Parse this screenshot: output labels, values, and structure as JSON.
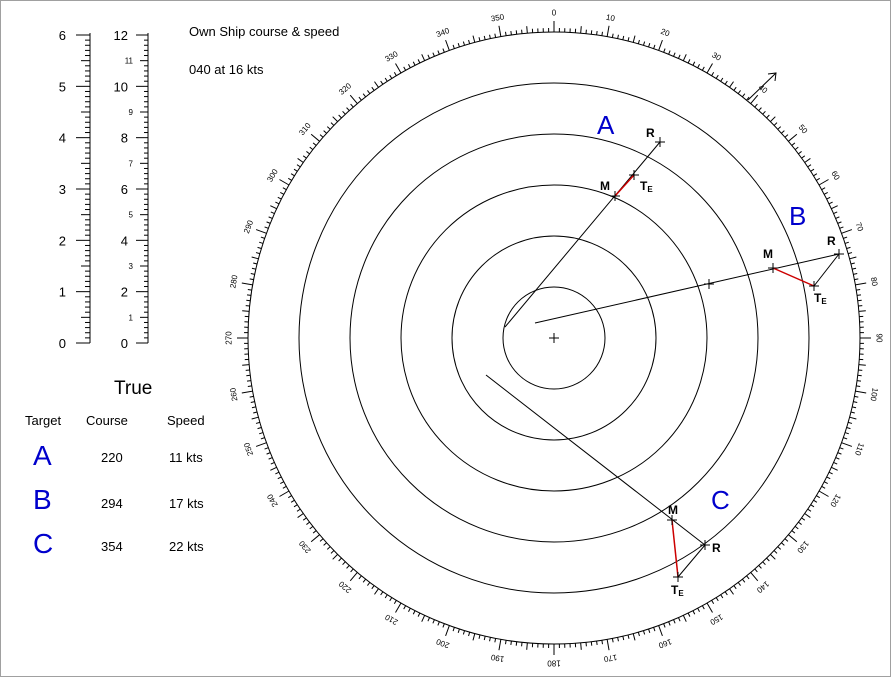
{
  "own_ship": {
    "title": "Own Ship course & speed",
    "value": "040  at 16 kts",
    "course": 40,
    "speed": 16
  },
  "scales": {
    "range_scale": [
      "0",
      "1",
      "2",
      "3",
      "4",
      "5",
      "6"
    ],
    "speed_scale_major": [
      "0",
      "2",
      "4",
      "6",
      "8",
      "10",
      "12"
    ],
    "speed_scale_minor": [
      "1",
      "3",
      "5",
      "7",
      "9",
      "11"
    ]
  },
  "table": {
    "heading": "True",
    "headers": {
      "target": "Target",
      "course": "Course",
      "speed": "Speed"
    },
    "rows": [
      {
        "target": "A",
        "course": "220",
        "speed": "11 kts"
      },
      {
        "target": "B",
        "course": "294",
        "speed": "17 kts"
      },
      {
        "target": "C",
        "course": "354",
        "speed": "22 kts"
      }
    ]
  },
  "plot": {
    "bearing_labels": [
      "0",
      "10",
      "20",
      "30",
      "40",
      "50",
      "60",
      "70",
      "80",
      "90",
      "100",
      "110",
      "120",
      "130",
      "140",
      "150",
      "160",
      "170",
      "180",
      "190",
      "200",
      "210",
      "220",
      "230",
      "240",
      "250",
      "260",
      "270",
      "280",
      "290",
      "300",
      "310",
      "320",
      "330",
      "340",
      "350"
    ],
    "point_labels": {
      "R": "R",
      "M": "M",
      "T": "T",
      "T_sub": "E"
    },
    "targets": [
      {
        "id": "A",
        "label": "A"
      },
      {
        "id": "B",
        "label": "B"
      },
      {
        "id": "C",
        "label": "C"
      }
    ],
    "colors": {
      "target_label": "#0000cc",
      "true_vector": "#cc0000",
      "lines": "#000000"
    }
  }
}
